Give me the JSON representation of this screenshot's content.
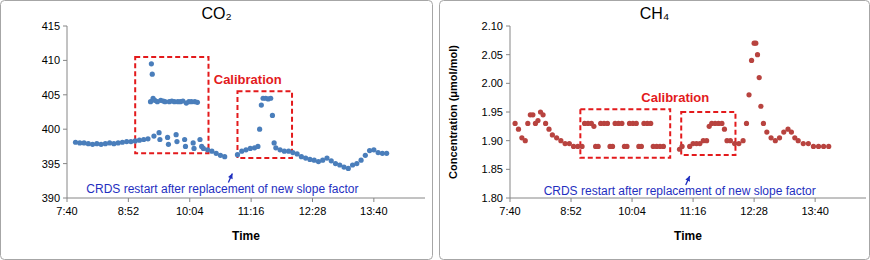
{
  "chart_data": [
    {
      "type": "scatter",
      "title": "CO₂",
      "x_label": "Time",
      "x": [
        470,
        475,
        480,
        485,
        490,
        495,
        500,
        505,
        510,
        515,
        520,
        525,
        530,
        535,
        540,
        545,
        550,
        555,
        558,
        559,
        560,
        561,
        562,
        563,
        566,
        568,
        569,
        570,
        573,
        575,
        578,
        579,
        580,
        583,
        586,
        588,
        589,
        590,
        593,
        596,
        598,
        599,
        600,
        603,
        606,
        608,
        609,
        610,
        613,
        616,
        618,
        620,
        625,
        630,
        635,
        640,
        645,
        660,
        665,
        670,
        675,
        680,
        684,
        686,
        688,
        690,
        693,
        696,
        699,
        701,
        703,
        705,
        710,
        715,
        720,
        725,
        730,
        735,
        740,
        745,
        750,
        755,
        760,
        765,
        770,
        775,
        780,
        785,
        790,
        795,
        800,
        805,
        810,
        815,
        820,
        825,
        830,
        835
      ],
      "values": [
        398.1,
        398.0,
        398.0,
        397.9,
        397.8,
        397.9,
        397.8,
        397.9,
        398.0,
        397.9,
        398.0,
        398.1,
        398.2,
        398.2,
        398.3,
        398.4,
        398.5,
        398.6,
        404.0,
        409.5,
        408.0,
        404.5,
        399.0,
        404.2,
        404.0,
        399.5,
        398.5,
        404.2,
        404.1,
        404.0,
        398.8,
        397.8,
        404.0,
        404.1,
        404.0,
        399.2,
        398.2,
        404.0,
        404.0,
        404.1,
        398.5,
        397.5,
        403.8,
        404.0,
        404.0,
        398.0,
        397.2,
        404.0,
        403.9,
        398.5,
        397.5,
        397.2,
        397.0,
        396.8,
        396.5,
        396.2,
        396.0,
        396.3,
        396.8,
        397.0,
        397.2,
        397.3,
        397.5,
        400.0,
        403.5,
        404.5,
        404.5,
        404.4,
        404.5,
        402.0,
        398.0,
        397.3,
        397.0,
        396.8,
        396.8,
        396.6,
        396.4,
        396.0,
        395.8,
        395.6,
        395.5,
        395.3,
        395.5,
        395.8,
        395.4,
        395.0,
        394.8,
        394.5,
        394.3,
        394.8,
        395.0,
        395.5,
        396.2,
        396.9,
        397.0,
        396.6,
        396.5,
        396.5
      ],
      "color": "#4a7ebb",
      "marker": "circle",
      "xlim": [
        460,
        880
      ],
      "xticks": [
        {
          "value": 460,
          "label": "7:40"
        },
        {
          "value": 532,
          "label": "8:52"
        },
        {
          "value": 604,
          "label": "10:04"
        },
        {
          "value": 676,
          "label": "11:16"
        },
        {
          "value": 748,
          "label": "12:28"
        },
        {
          "value": 820,
          "label": "13:40"
        }
      ],
      "ylim": [
        390,
        415
      ],
      "yticks": [
        390,
        395,
        400,
        405,
        410,
        415
      ],
      "grid": false,
      "regions": [
        {
          "xlim": [
            540,
            626
          ],
          "ylim": [
            396.5,
            410.5
          ],
          "color": "#e31a1c"
        },
        {
          "xlim": [
            660,
            724
          ],
          "ylim": [
            395.8,
            405.5
          ],
          "color": "#e31a1c"
        }
      ],
      "annotations": [
        {
          "text": "Calibration",
          "x": 672,
          "y": 406.5,
          "color": "#e31a1c"
        },
        {
          "text": "CRDS restart after replacement of new slope factor",
          "x": 654,
          "y": 393.7,
          "color": "#1f2fbf",
          "marker": "arrow"
        }
      ]
    },
    {
      "type": "scatter",
      "title": "CH₄",
      "x_label": "Time",
      "y_label": "Concentration (μmol/mol)",
      "x": [
        466,
        470,
        474,
        478,
        481,
        484,
        487,
        490,
        493,
        496,
        499,
        502,
        506,
        510,
        515,
        520,
        525,
        530,
        535,
        540,
        545,
        548,
        552,
        556,
        559,
        561,
        564,
        567,
        571,
        575,
        578,
        581,
        584,
        588,
        592,
        595,
        598,
        601,
        605,
        609,
        612,
        615,
        618,
        622,
        626,
        629,
        633,
        637,
        641,
        660,
        663,
        672,
        676,
        680,
        684,
        688,
        692,
        695,
        698,
        702,
        706,
        710,
        713,
        716,
        720,
        725,
        730,
        735,
        739,
        742,
        745,
        748,
        750,
        752,
        754,
        756,
        759,
        763,
        768,
        773,
        778,
        783,
        788,
        792,
        796,
        800,
        806,
        812,
        818,
        824,
        830,
        836
      ],
      "values": [
        1.93,
        1.92,
        1.905,
        1.9,
        1.93,
        1.945,
        1.945,
        1.93,
        1.935,
        1.95,
        1.945,
        1.93,
        1.92,
        1.91,
        1.905,
        1.9,
        1.895,
        1.895,
        1.89,
        1.89,
        1.89,
        1.93,
        1.93,
        1.93,
        1.925,
        1.89,
        1.89,
        1.93,
        1.93,
        1.93,
        1.89,
        1.89,
        1.93,
        1.93,
        1.93,
        1.89,
        1.89,
        1.93,
        1.93,
        1.93,
        1.89,
        1.89,
        1.93,
        1.93,
        1.93,
        1.89,
        1.89,
        1.89,
        1.89,
        1.885,
        1.89,
        1.89,
        1.895,
        1.895,
        1.895,
        1.9,
        1.9,
        1.925,
        1.93,
        1.93,
        1.93,
        1.93,
        1.92,
        1.9,
        1.9,
        1.895,
        1.895,
        1.9,
        1.93,
        1.98,
        2.04,
        2.07,
        2.07,
        2.05,
        2.01,
        1.96,
        1.93,
        1.915,
        1.905,
        1.9,
        1.905,
        1.915,
        1.92,
        1.915,
        1.905,
        1.9,
        1.895,
        1.895,
        1.89,
        1.89,
        1.89,
        1.89
      ],
      "color": "#b8433f",
      "marker": "circle",
      "xlim": [
        460,
        880
      ],
      "xticks": [
        {
          "value": 460,
          "label": "7:40"
        },
        {
          "value": 532,
          "label": "8:52"
        },
        {
          "value": 604,
          "label": "10:04"
        },
        {
          "value": 676,
          "label": "11:16"
        },
        {
          "value": 748,
          "label": "12:28"
        },
        {
          "value": 820,
          "label": "13:40"
        }
      ],
      "ylim": [
        1.8,
        2.1
      ],
      "yticks": [
        {
          "value": 1.8,
          "label": "1.80"
        },
        {
          "value": 1.85,
          "label": "1.85"
        },
        {
          "value": 1.9,
          "label": "1.90"
        },
        {
          "value": 1.95,
          "label": "1.95"
        },
        {
          "value": 2.0,
          "label": "2.00"
        },
        {
          "value": 2.05,
          "label": "2.05"
        },
        {
          "value": 2.1,
          "label": "2.10"
        }
      ],
      "grid": false,
      "regions": [
        {
          "xlim": [
            543,
            649
          ],
          "ylim": [
            1.87,
            1.955
          ],
          "color": "#e31a1c"
        },
        {
          "xlim": [
            662,
            726
          ],
          "ylim": [
            1.875,
            1.95
          ],
          "color": "#e31a1c"
        }
      ],
      "annotations": [
        {
          "text": "Calibration",
          "x": 655,
          "y": 1.968,
          "color": "#e31a1c"
        },
        {
          "text": "CRDS restart after replacement of new slope factor",
          "x": 672,
          "y": 1.84,
          "color": "#1f2fbf",
          "marker": "arrow"
        }
      ]
    }
  ]
}
